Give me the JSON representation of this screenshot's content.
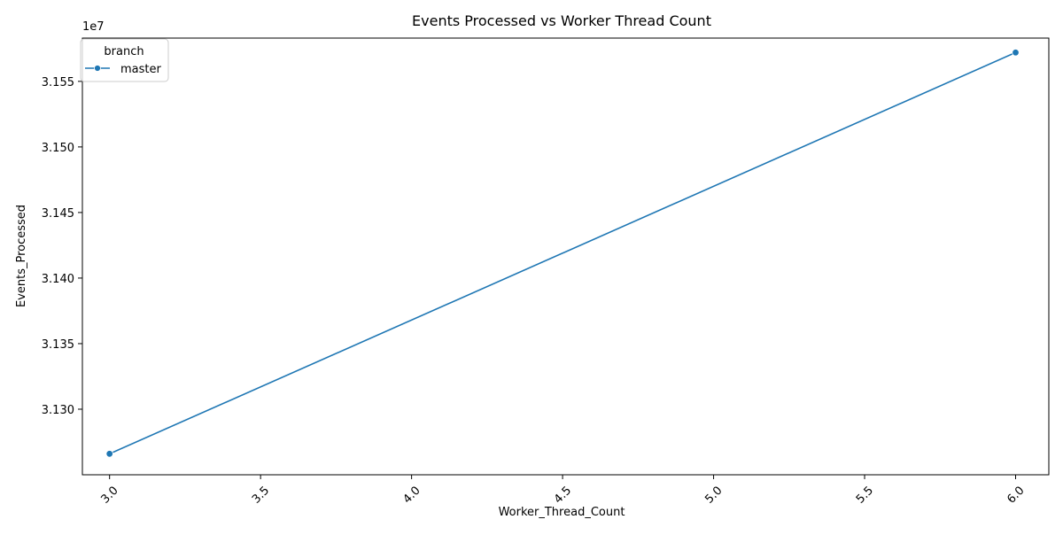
{
  "chart_data": {
    "type": "line",
    "title": "Events Processed vs Worker Thread Count",
    "xlabel": "Worker_Thread_Count",
    "ylabel": "Events_Processed",
    "y_offset_label": "1e7",
    "xlim": [
      2.91,
      6.11
    ],
    "ylim": [
      31250000,
      31583000
    ],
    "x_ticks": [
      3.0,
      3.5,
      4.0,
      4.5,
      5.0,
      5.5,
      6.0
    ],
    "x_tick_labels": [
      "3.0",
      "3.5",
      "4.0",
      "4.5",
      "5.0",
      "5.5",
      "6.0"
    ],
    "x_tick_rotation": 45,
    "y_ticks": [
      31300000,
      31350000,
      31400000,
      31450000,
      31500000,
      31550000
    ],
    "y_tick_labels": [
      "3.130",
      "3.135",
      "3.140",
      "3.145",
      "3.150",
      "3.155"
    ],
    "grid": false,
    "legend": {
      "title": "branch",
      "placement": "top-left"
    },
    "series": [
      {
        "name": "master",
        "color": "#1f77b4",
        "marker": "circle",
        "x": [
          3.0,
          6.0
        ],
        "y": [
          31266000,
          31572000
        ]
      }
    ]
  }
}
